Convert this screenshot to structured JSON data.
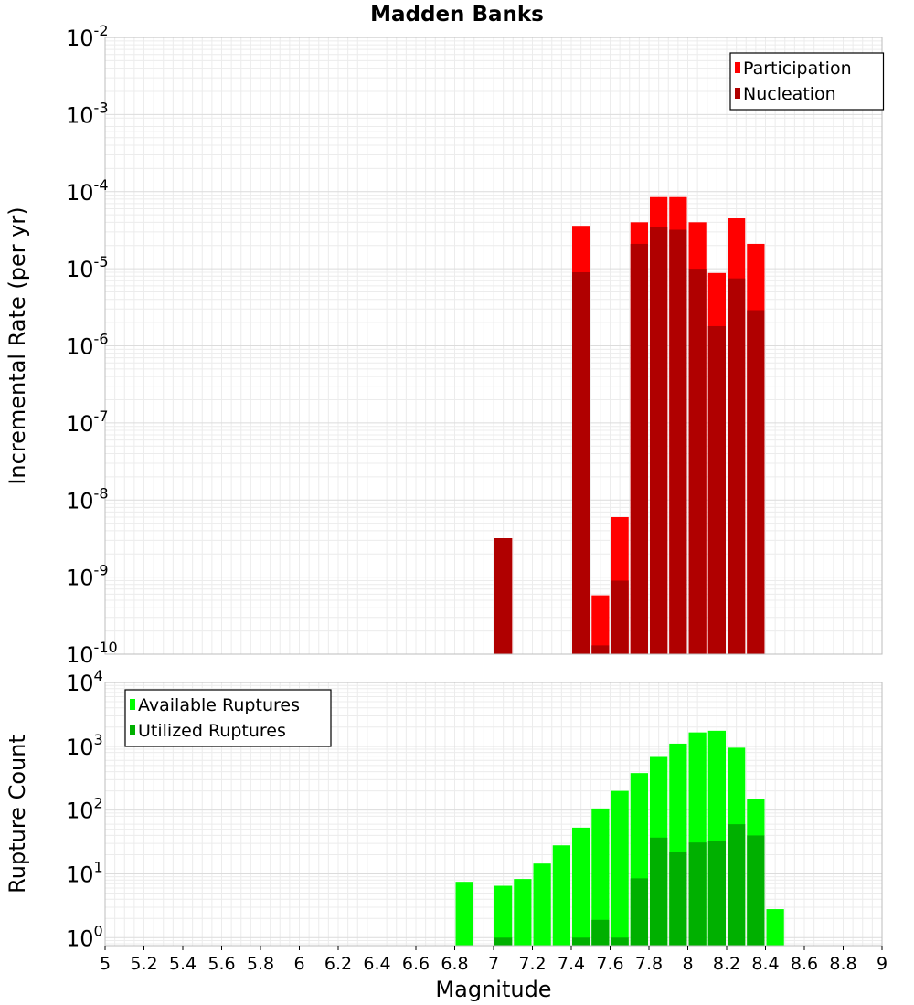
{
  "chart_data": [
    {
      "type": "bar",
      "title": "Madden Banks",
      "xlabel": "",
      "ylabel": "Incremental Rate (per yr)",
      "yscale": "log",
      "ylim": [
        1e-10,
        0.01
      ],
      "xlim": [
        5,
        9
      ],
      "bin_width": 0.1,
      "grid": true,
      "legend_position": "top-right",
      "y_tick_labels": [
        {
          "value": 1e-10,
          "base": "10",
          "exp": "-10"
        },
        {
          "value": 1e-09,
          "base": "10",
          "exp": "-9"
        },
        {
          "value": 1e-08,
          "base": "10",
          "exp": "-8"
        },
        {
          "value": 1e-07,
          "base": "10",
          "exp": "-7"
        },
        {
          "value": 1e-06,
          "base": "10",
          "exp": "-6"
        },
        {
          "value": 1e-05,
          "base": "10",
          "exp": "-5"
        },
        {
          "value": 0.0001,
          "base": "10",
          "exp": "-4"
        },
        {
          "value": 0.001,
          "base": "10",
          "exp": "-3"
        },
        {
          "value": 0.01,
          "base": "10",
          "exp": "-2"
        }
      ],
      "series": [
        {
          "name": "Participation",
          "color": "#ff0000",
          "points": [
            {
              "x": 7.05,
              "y": 3.2e-09
            },
            {
              "x": 7.45,
              "y": 3.6e-05
            },
            {
              "x": 7.55,
              "y": 5.8e-10
            },
            {
              "x": 7.65,
              "y": 6e-09
            },
            {
              "x": 7.75,
              "y": 4e-05
            },
            {
              "x": 7.85,
              "y": 8.5e-05
            },
            {
              "x": 7.95,
              "y": 8.5e-05
            },
            {
              "x": 8.05,
              "y": 4e-05
            },
            {
              "x": 8.15,
              "y": 8.8e-06
            },
            {
              "x": 8.25,
              "y": 4.5e-05
            },
            {
              "x": 8.35,
              "y": 2.1e-05
            }
          ]
        },
        {
          "name": "Nucleation",
          "color": "#b00000",
          "points": [
            {
              "x": 7.05,
              "y": 3.2e-09
            },
            {
              "x": 7.45,
              "y": 9e-06
            },
            {
              "x": 7.55,
              "y": 1.3e-10
            },
            {
              "x": 7.65,
              "y": 9e-10
            },
            {
              "x": 7.75,
              "y": 2.1e-05
            },
            {
              "x": 7.85,
              "y": 3.5e-05
            },
            {
              "x": 7.95,
              "y": 3.2e-05
            },
            {
              "x": 8.05,
              "y": 1e-05
            },
            {
              "x": 8.15,
              "y": 1.8e-06
            },
            {
              "x": 8.25,
              "y": 7.5e-06
            },
            {
              "x": 8.35,
              "y": 2.9e-06
            }
          ]
        }
      ]
    },
    {
      "type": "bar",
      "title": "",
      "xlabel": "Magnitude",
      "ylabel": "Rupture Count",
      "yscale": "log",
      "ylim": [
        0.75,
        10000
      ],
      "xlim": [
        5,
        9
      ],
      "bin_width": 0.1,
      "grid": true,
      "legend_position": "top-left",
      "x_tick_labels": [
        "5",
        "5.2",
        "5.4",
        "5.6",
        "5.8",
        "6",
        "6.2",
        "6.4",
        "6.6",
        "6.8",
        "7",
        "7.2",
        "7.4",
        "7.6",
        "7.8",
        "8",
        "8.2",
        "8.4",
        "8.6",
        "8.8",
        "9"
      ],
      "y_tick_labels": [
        {
          "value": 1,
          "base": "10",
          "exp": "0"
        },
        {
          "value": 10,
          "base": "10",
          "exp": "1"
        },
        {
          "value": 100,
          "base": "10",
          "exp": "2"
        },
        {
          "value": 1000,
          "base": "10",
          "exp": "3"
        },
        {
          "value": 10000,
          "base": "10",
          "exp": "4"
        }
      ],
      "series": [
        {
          "name": "Available Ruptures",
          "color": "#00ff00",
          "points": [
            {
              "x": 6.85,
              "y": 7.5
            },
            {
              "x": 7.05,
              "y": 6.5
            },
            {
              "x": 7.15,
              "y": 8.3
            },
            {
              "x": 7.25,
              "y": 14.5
            },
            {
              "x": 7.35,
              "y": 28
            },
            {
              "x": 7.45,
              "y": 53
            },
            {
              "x": 7.55,
              "y": 106
            },
            {
              "x": 7.65,
              "y": 200
            },
            {
              "x": 7.75,
              "y": 380
            },
            {
              "x": 7.85,
              "y": 680
            },
            {
              "x": 7.95,
              "y": 1100
            },
            {
              "x": 8.05,
              "y": 1650
            },
            {
              "x": 8.15,
              "y": 1750
            },
            {
              "x": 8.25,
              "y": 950
            },
            {
              "x": 8.35,
              "y": 148
            },
            {
              "x": 8.45,
              "y": 2.8
            }
          ]
        },
        {
          "name": "Utilized Ruptures",
          "color": "#00b000",
          "points": [
            {
              "x": 7.05,
              "y": 1
            },
            {
              "x": 7.45,
              "y": 1
            },
            {
              "x": 7.55,
              "y": 1.9
            },
            {
              "x": 7.65,
              "y": 1
            },
            {
              "x": 7.75,
              "y": 8.5
            },
            {
              "x": 7.85,
              "y": 37
            },
            {
              "x": 7.95,
              "y": 22
            },
            {
              "x": 8.05,
              "y": 31
            },
            {
              "x": 8.15,
              "y": 33
            },
            {
              "x": 8.25,
              "y": 60
            },
            {
              "x": 8.35,
              "y": 40
            }
          ]
        }
      ]
    }
  ]
}
